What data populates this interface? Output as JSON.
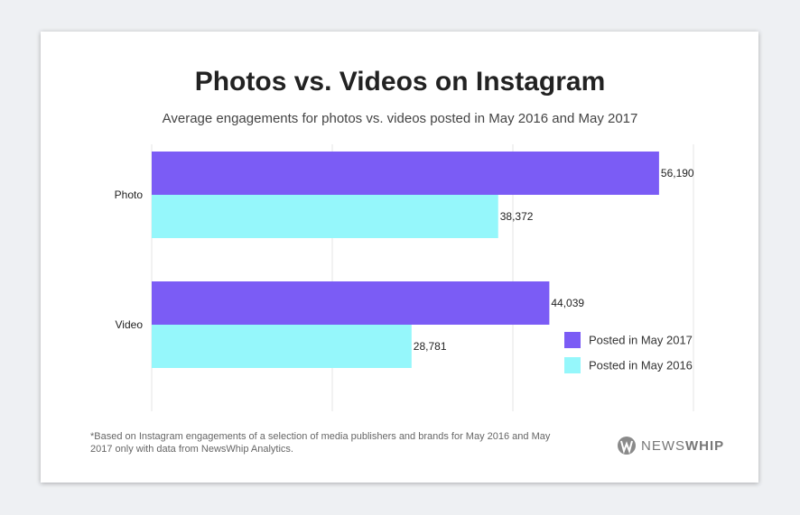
{
  "chart_data": {
    "type": "bar",
    "orientation": "horizontal",
    "title": "Photos vs. Videos on Instagram",
    "subtitle": "Average engagements for photos vs. videos posted in May 2016 and May 2017",
    "categories": [
      "Photo",
      "Video"
    ],
    "series": [
      {
        "name": "Posted in May 2017",
        "color": "#7b5cf5",
        "values": [
          56190,
          44039
        ],
        "value_labels": [
          "56,190",
          "44,039"
        ]
      },
      {
        "name": "Posted in May 2016",
        "color": "#95f7fb",
        "values": [
          38372,
          28781
        ],
        "value_labels": [
          "38,372",
          "28,781"
        ]
      }
    ],
    "xlim": [
      0,
      60000
    ],
    "xticks": [
      0,
      20000,
      40000,
      60000
    ],
    "grid": true,
    "legend": "lower right",
    "footnote": "*Based on Instagram engagements of a selection of media publishers and brands for May 2016 and May 2017 only with data from NewsWhip Analytics.",
    "brand": {
      "left": "NEWS",
      "right": "WHIP"
    }
  }
}
